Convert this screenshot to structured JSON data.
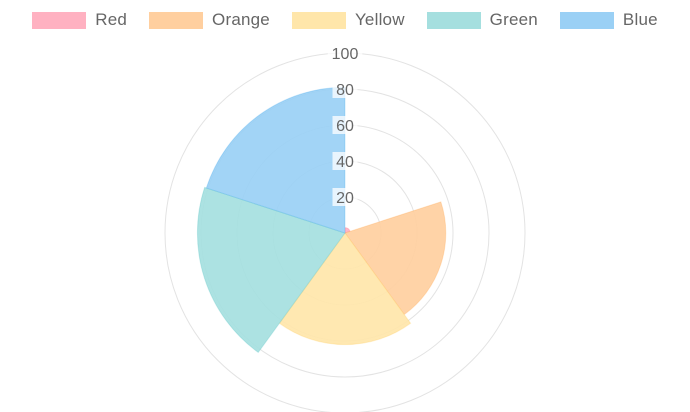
{
  "chart_data": {
    "type": "polarArea",
    "categories": [
      "Red",
      "Orange",
      "Yellow",
      "Green",
      "Blue"
    ],
    "values": [
      3,
      56,
      62,
      82,
      81
    ],
    "colors": {
      "fill": [
        "#ffb1c1",
        "#ffcf9f",
        "#ffe6aa",
        "#a5dfdf",
        "#9ad0f5"
      ],
      "border": [
        "#ff6384",
        "#ff9f40",
        "#ffcd56",
        "#4bc0c0",
        "#36a2eb"
      ]
    },
    "r_axis": {
      "min": 0,
      "max": 100,
      "ticks": [
        "20",
        "40",
        "60",
        "80",
        "100"
      ],
      "grid": true
    },
    "legend_position": "top"
  }
}
